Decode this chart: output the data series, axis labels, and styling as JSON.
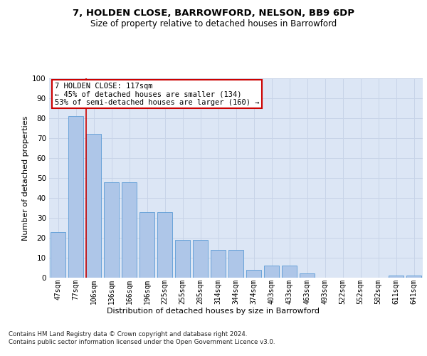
{
  "title": "7, HOLDEN CLOSE, BARROWFORD, NELSON, BB9 6DP",
  "subtitle": "Size of property relative to detached houses in Barrowford",
  "xlabel": "Distribution of detached houses by size in Barrowford",
  "ylabel": "Number of detached properties",
  "categories": [
    "47sqm",
    "77sqm",
    "106sqm",
    "136sqm",
    "166sqm",
    "196sqm",
    "225sqm",
    "255sqm",
    "285sqm",
    "314sqm",
    "344sqm",
    "374sqm",
    "403sqm",
    "433sqm",
    "463sqm",
    "493sqm",
    "522sqm",
    "552sqm",
    "582sqm",
    "611sqm",
    "641sqm"
  ],
  "values": [
    23,
    81,
    72,
    48,
    48,
    33,
    33,
    19,
    19,
    14,
    14,
    4,
    6,
    6,
    2,
    0,
    0,
    0,
    0,
    1,
    1
  ],
  "bar_color": "#aec6e8",
  "bar_edge_color": "#5b9bd5",
  "annotation_text": "7 HOLDEN CLOSE: 117sqm\n← 45% of detached houses are smaller (134)\n53% of semi-detached houses are larger (160) →",
  "annotation_box_color": "#ffffff",
  "annotation_box_edge_color": "#cc0000",
  "vline_x": 1.57,
  "vline_color": "#cc0000",
  "grid_color": "#c8d4e8",
  "plot_bg_color": "#dce6f5",
  "footer_line1": "Contains HM Land Registry data © Crown copyright and database right 2024.",
  "footer_line2": "Contains public sector information licensed under the Open Government Licence v3.0.",
  "ylim": [
    0,
    100
  ],
  "yticks": [
    0,
    10,
    20,
    30,
    40,
    50,
    60,
    70,
    80,
    90,
    100
  ]
}
